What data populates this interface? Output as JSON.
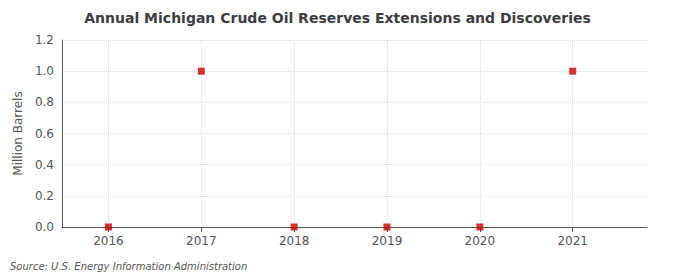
{
  "chart_data": {
    "type": "scatter",
    "title": "Annual Michigan Crude Oil Reserves Extensions and Discoveries",
    "ylabel": "Million Barrels",
    "annotations": [
      "Source: U.S. Energy Information Administration"
    ],
    "x": [
      2016,
      2017,
      2018,
      2019,
      2020,
      2021
    ],
    "values": [
      0.0,
      1.0,
      0.0,
      0.0,
      0.0,
      1.0
    ],
    "color": "#cc0000",
    "marker": "square",
    "xlim": [
      2015.5,
      2021.8
    ],
    "xticks": [
      2016,
      2017,
      2018,
      2019,
      2020,
      2021
    ],
    "ylim": [
      0.0,
      1.2
    ],
    "yticks": [
      {
        "value": 0.0,
        "label": "0.0"
      },
      0.2,
      0.4,
      0.6,
      0.8,
      {
        "value": 1.0,
        "label": "1.0"
      },
      1.2
    ],
    "grid": true
  }
}
